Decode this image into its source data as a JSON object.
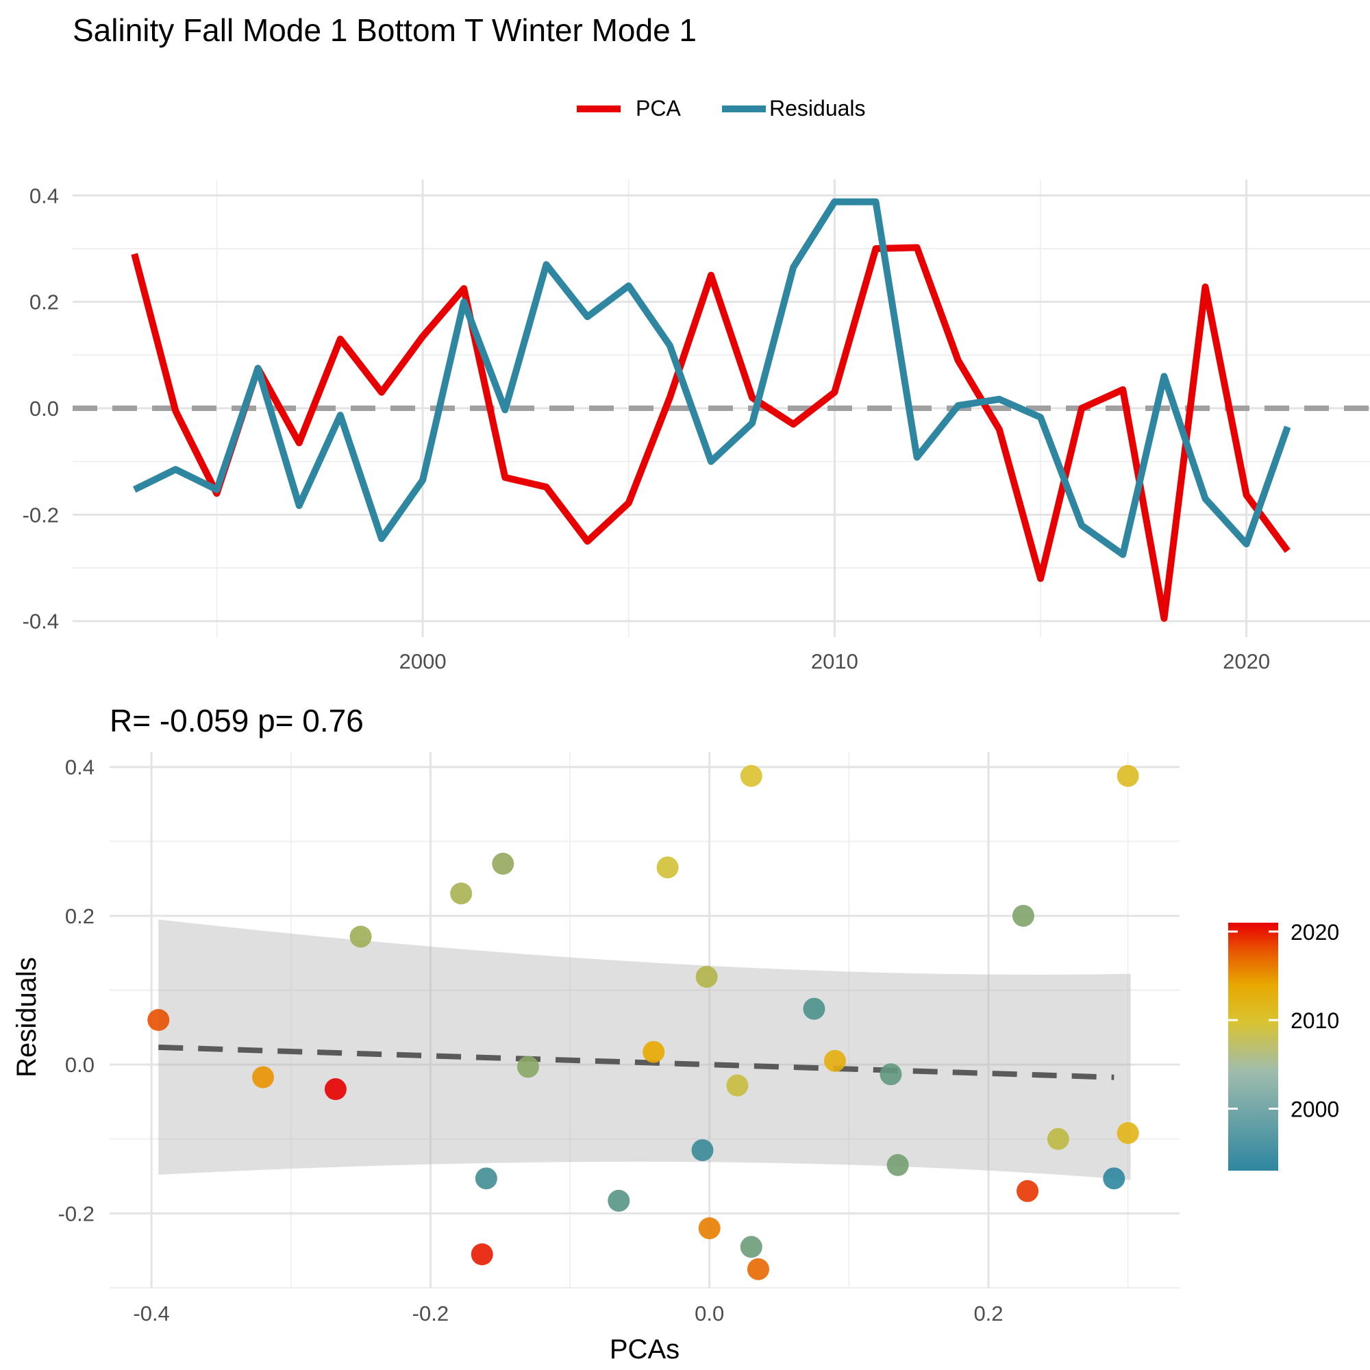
{
  "title": "Salinity Fall Mode 1 Bottom T Winter Mode 1",
  "legend": {
    "items": [
      {
        "label": "PCA",
        "color": "#e80000"
      },
      {
        "label": "Residuals",
        "color": "#2e86a0"
      }
    ]
  },
  "chart_data": [
    {
      "type": "line",
      "title": "",
      "xlabel": "",
      "ylabel": "",
      "xlim": [
        1991.5,
        2023
      ],
      "ylim": [
        -0.43,
        0.43
      ],
      "x_ticks": [
        2000,
        2010,
        2020
      ],
      "x_tick_labels": [
        "2000",
        "2010",
        "2020"
      ],
      "y_ticks": [
        -0.4,
        -0.2,
        0.0,
        0.2,
        0.4
      ],
      "y_tick_labels": [
        "-0.4",
        "-0.2",
        "0.0",
        "0.2",
        "0.4"
      ],
      "grid": true,
      "legend_position": "top",
      "reference_line": 0,
      "x": [
        1993,
        1994,
        1995,
        1996,
        1997,
        1998,
        1999,
        2000,
        2001,
        2002,
        2003,
        2004,
        2005,
        2006,
        2007,
        2008,
        2009,
        2010,
        2011,
        2012,
        2013,
        2014,
        2015,
        2016,
        2017,
        2018,
        2019,
        2020,
        2021
      ],
      "series": [
        {
          "name": "PCA",
          "color": "#e80000",
          "values": [
            0.29,
            -0.005,
            -0.16,
            0.075,
            -0.065,
            0.13,
            0.03,
            0.135,
            0.225,
            -0.13,
            -0.148,
            -0.25,
            -0.178,
            0.02,
            0.25,
            0.02,
            -0.03,
            0.03,
            0.3,
            0.302,
            0.09,
            -0.04,
            -0.32,
            0.0,
            0.035,
            -0.395,
            0.228,
            -0.163,
            -0.268
          ]
        },
        {
          "name": "Residuals",
          "color": "#2e86a0",
          "values": [
            -0.153,
            -0.115,
            -0.153,
            0.075,
            -0.183,
            -0.013,
            -0.245,
            -0.135,
            0.2,
            -0.003,
            0.27,
            0.172,
            0.23,
            0.118,
            -0.1,
            -0.028,
            0.265,
            0.388,
            0.388,
            -0.092,
            0.005,
            0.017,
            -0.017,
            -0.22,
            -0.275,
            0.06,
            -0.17,
            -0.255,
            -0.035
          ]
        }
      ]
    },
    {
      "type": "scatter",
      "title": "R= -0.059  p= 0.76",
      "xlabel": "PCAs",
      "ylabel": "Residuals",
      "xlim": [
        -0.43,
        0.337
      ],
      "ylim": [
        -0.3,
        0.42
      ],
      "x_ticks": [
        -0.4,
        -0.2,
        0.0,
        0.2
      ],
      "x_tick_labels": [
        "-0.4",
        "-0.2",
        "0.0",
        "0.2"
      ],
      "y_ticks": [
        -0.2,
        0.0,
        0.2,
        0.4
      ],
      "y_tick_labels": [
        "-0.2",
        "0.0",
        "0.2",
        "0.4"
      ],
      "grid": true,
      "fit": {
        "intercept": 0.0,
        "slope": -0.059,
        "x_range": [
          -0.395,
          0.29
        ],
        "ci_upper": [
          0.195,
          0.075,
          0.122
        ],
        "ci_lower": [
          -0.148,
          -0.073,
          -0.155
        ],
        "ci_x": [
          -0.395,
          0.0,
          0.302
        ]
      },
      "colorbar": {
        "title": "",
        "min": 1993,
        "max": 2021,
        "ticks": [
          2000,
          2010,
          2020
        ],
        "tick_labels": [
          "2000",
          "2010",
          "2020"
        ],
        "stops": [
          "#2e86a0",
          "#d9c331",
          "#e8a800",
          "#e85a00",
          "#e80000"
        ]
      },
      "points": [
        {
          "x": 0.29,
          "y": -0.153,
          "year": 1993
        },
        {
          "x": -0.005,
          "y": -0.115,
          "year": 1994
        },
        {
          "x": -0.16,
          "y": -0.153,
          "year": 1995
        },
        {
          "x": 0.075,
          "y": 0.075,
          "year": 1996
        },
        {
          "x": -0.065,
          "y": -0.183,
          "year": 1997
        },
        {
          "x": 0.13,
          "y": -0.013,
          "year": 1998
        },
        {
          "x": 0.03,
          "y": -0.245,
          "year": 1999
        },
        {
          "x": 0.135,
          "y": -0.135,
          "year": 2000
        },
        {
          "x": 0.225,
          "y": 0.2,
          "year": 2001
        },
        {
          "x": -0.13,
          "y": -0.003,
          "year": 2002
        },
        {
          "x": -0.148,
          "y": 0.27,
          "year": 2003
        },
        {
          "x": -0.25,
          "y": 0.172,
          "year": 2004
        },
        {
          "x": -0.178,
          "y": 0.23,
          "year": 2005
        },
        {
          "x": -0.002,
          "y": 0.118,
          "year": 2006
        },
        {
          "x": 0.25,
          "y": -0.1,
          "year": 2007
        },
        {
          "x": 0.02,
          "y": -0.028,
          "year": 2008
        },
        {
          "x": -0.03,
          "y": 0.265,
          "year": 2009
        },
        {
          "x": 0.03,
          "y": 0.388,
          "year": 2010
        },
        {
          "x": 0.3,
          "y": 0.388,
          "year": 2011
        },
        {
          "x": 0.3,
          "y": -0.092,
          "year": 2012
        },
        {
          "x": 0.09,
          "y": 0.005,
          "year": 2013
        },
        {
          "x": -0.04,
          "y": 0.017,
          "year": 2014
        },
        {
          "x": -0.32,
          "y": -0.017,
          "year": 2015
        },
        {
          "x": 0.0,
          "y": -0.22,
          "year": 2016
        },
        {
          "x": 0.035,
          "y": -0.275,
          "year": 2017
        },
        {
          "x": -0.395,
          "y": 0.06,
          "year": 2018
        },
        {
          "x": 0.228,
          "y": -0.17,
          "year": 2019
        },
        {
          "x": -0.163,
          "y": -0.255,
          "year": 2020
        },
        {
          "x": -0.268,
          "y": -0.033,
          "year": 2021
        }
      ]
    }
  ]
}
